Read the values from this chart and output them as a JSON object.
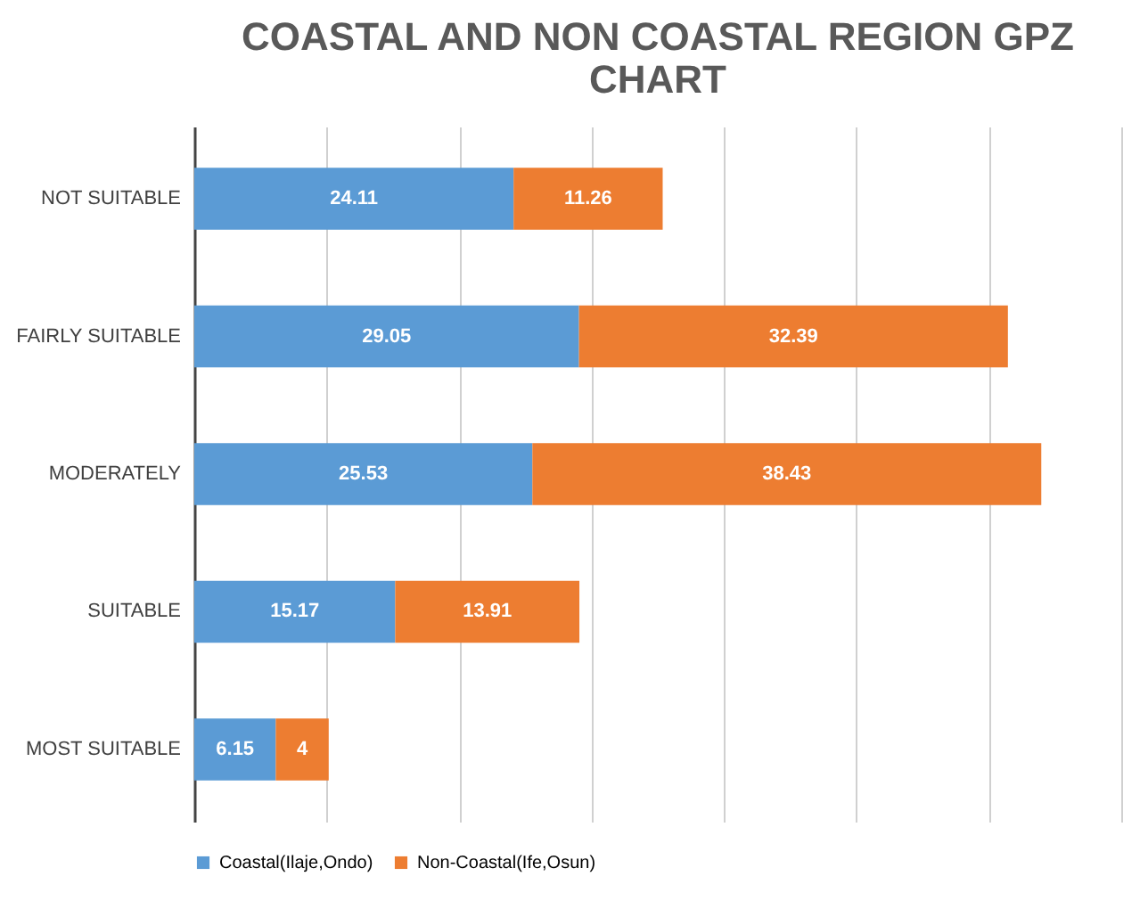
{
  "chart_data": {
    "type": "bar",
    "orientation": "horizontal",
    "stacked": true,
    "title": "COASTAL AND NON COASTAL REGION GPZ CHART",
    "categories": [
      "NOT SUITABLE",
      "FAIRLY SUITABLE",
      "MODERATELY",
      "SUITABLE",
      "MOST SUITABLE"
    ],
    "series": [
      {
        "name": "Coastal(Ilaje,Ondo)",
        "color": "#5b9bd5",
        "values": [
          24.11,
          29.05,
          25.53,
          15.17,
          6.15
        ]
      },
      {
        "name": "Non-Coastal(Ife,Osun)",
        "color": "#ed7d31",
        "values": [
          11.26,
          32.39,
          38.43,
          13.91,
          4
        ]
      }
    ],
    "xlim": [
      0,
      70
    ],
    "xticks": [
      {
        "value": 0,
        "label": null
      },
      {
        "value": 10,
        "label": null
      },
      {
        "value": 20,
        "label": null
      },
      {
        "value": 30,
        "label": null
      },
      {
        "value": 40,
        "label": null
      },
      {
        "value": 50,
        "label": null
      },
      {
        "value": 60,
        "label": null
      },
      {
        "value": 70,
        "label": null
      }
    ],
    "tick_labels": "y",
    "grid": "x",
    "legend": "bottom",
    "data_labels": true
  }
}
